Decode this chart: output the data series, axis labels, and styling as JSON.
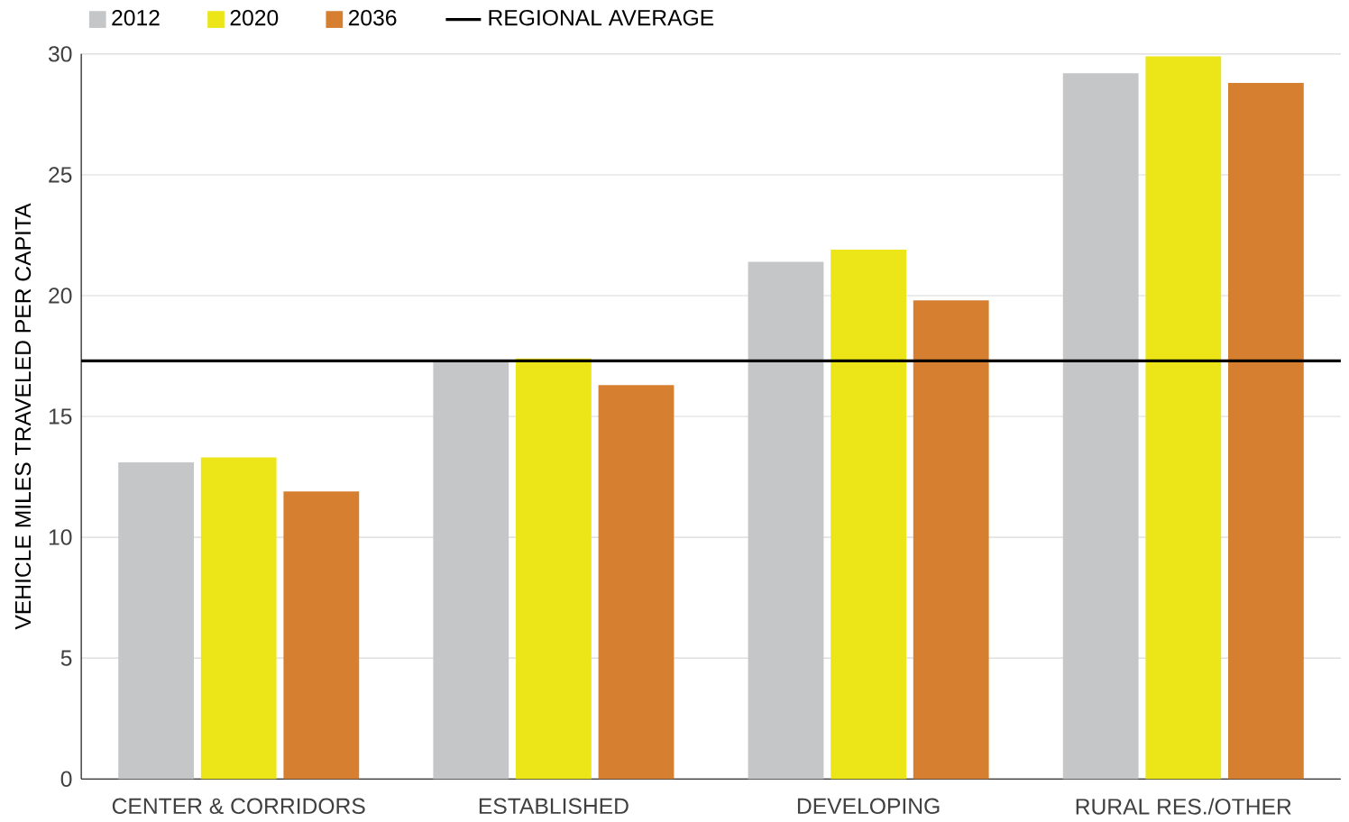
{
  "chart_data": {
    "type": "bar",
    "ylabel": "VEHICLE MILES TRAVELED PER CAPITA",
    "categories": [
      "CENTER & CORRIDORS",
      "ESTABLISHED",
      "DEVELOPING",
      "RURAL RES./OTHER"
    ],
    "series": [
      {
        "name": "2012",
        "color": "#c4c6c8",
        "values": [
          13.1,
          17.3,
          21.4,
          29.2
        ]
      },
      {
        "name": "2020",
        "color": "#ece619",
        "values": [
          13.3,
          17.4,
          21.9,
          29.9
        ]
      },
      {
        "name": "2036",
        "color": "#d67f30",
        "values": [
          11.9,
          16.3,
          19.8,
          28.8
        ]
      }
    ],
    "ylim": [
      0,
      30
    ],
    "yticks": [
      0,
      5,
      10,
      15,
      20,
      25,
      30
    ],
    "grid": "y",
    "legend": "top left",
    "ref_lines": [
      {
        "axis": "y",
        "value": 17.3,
        "label": "REGIONAL AVERAGE",
        "color": "#000000"
      }
    ]
  }
}
